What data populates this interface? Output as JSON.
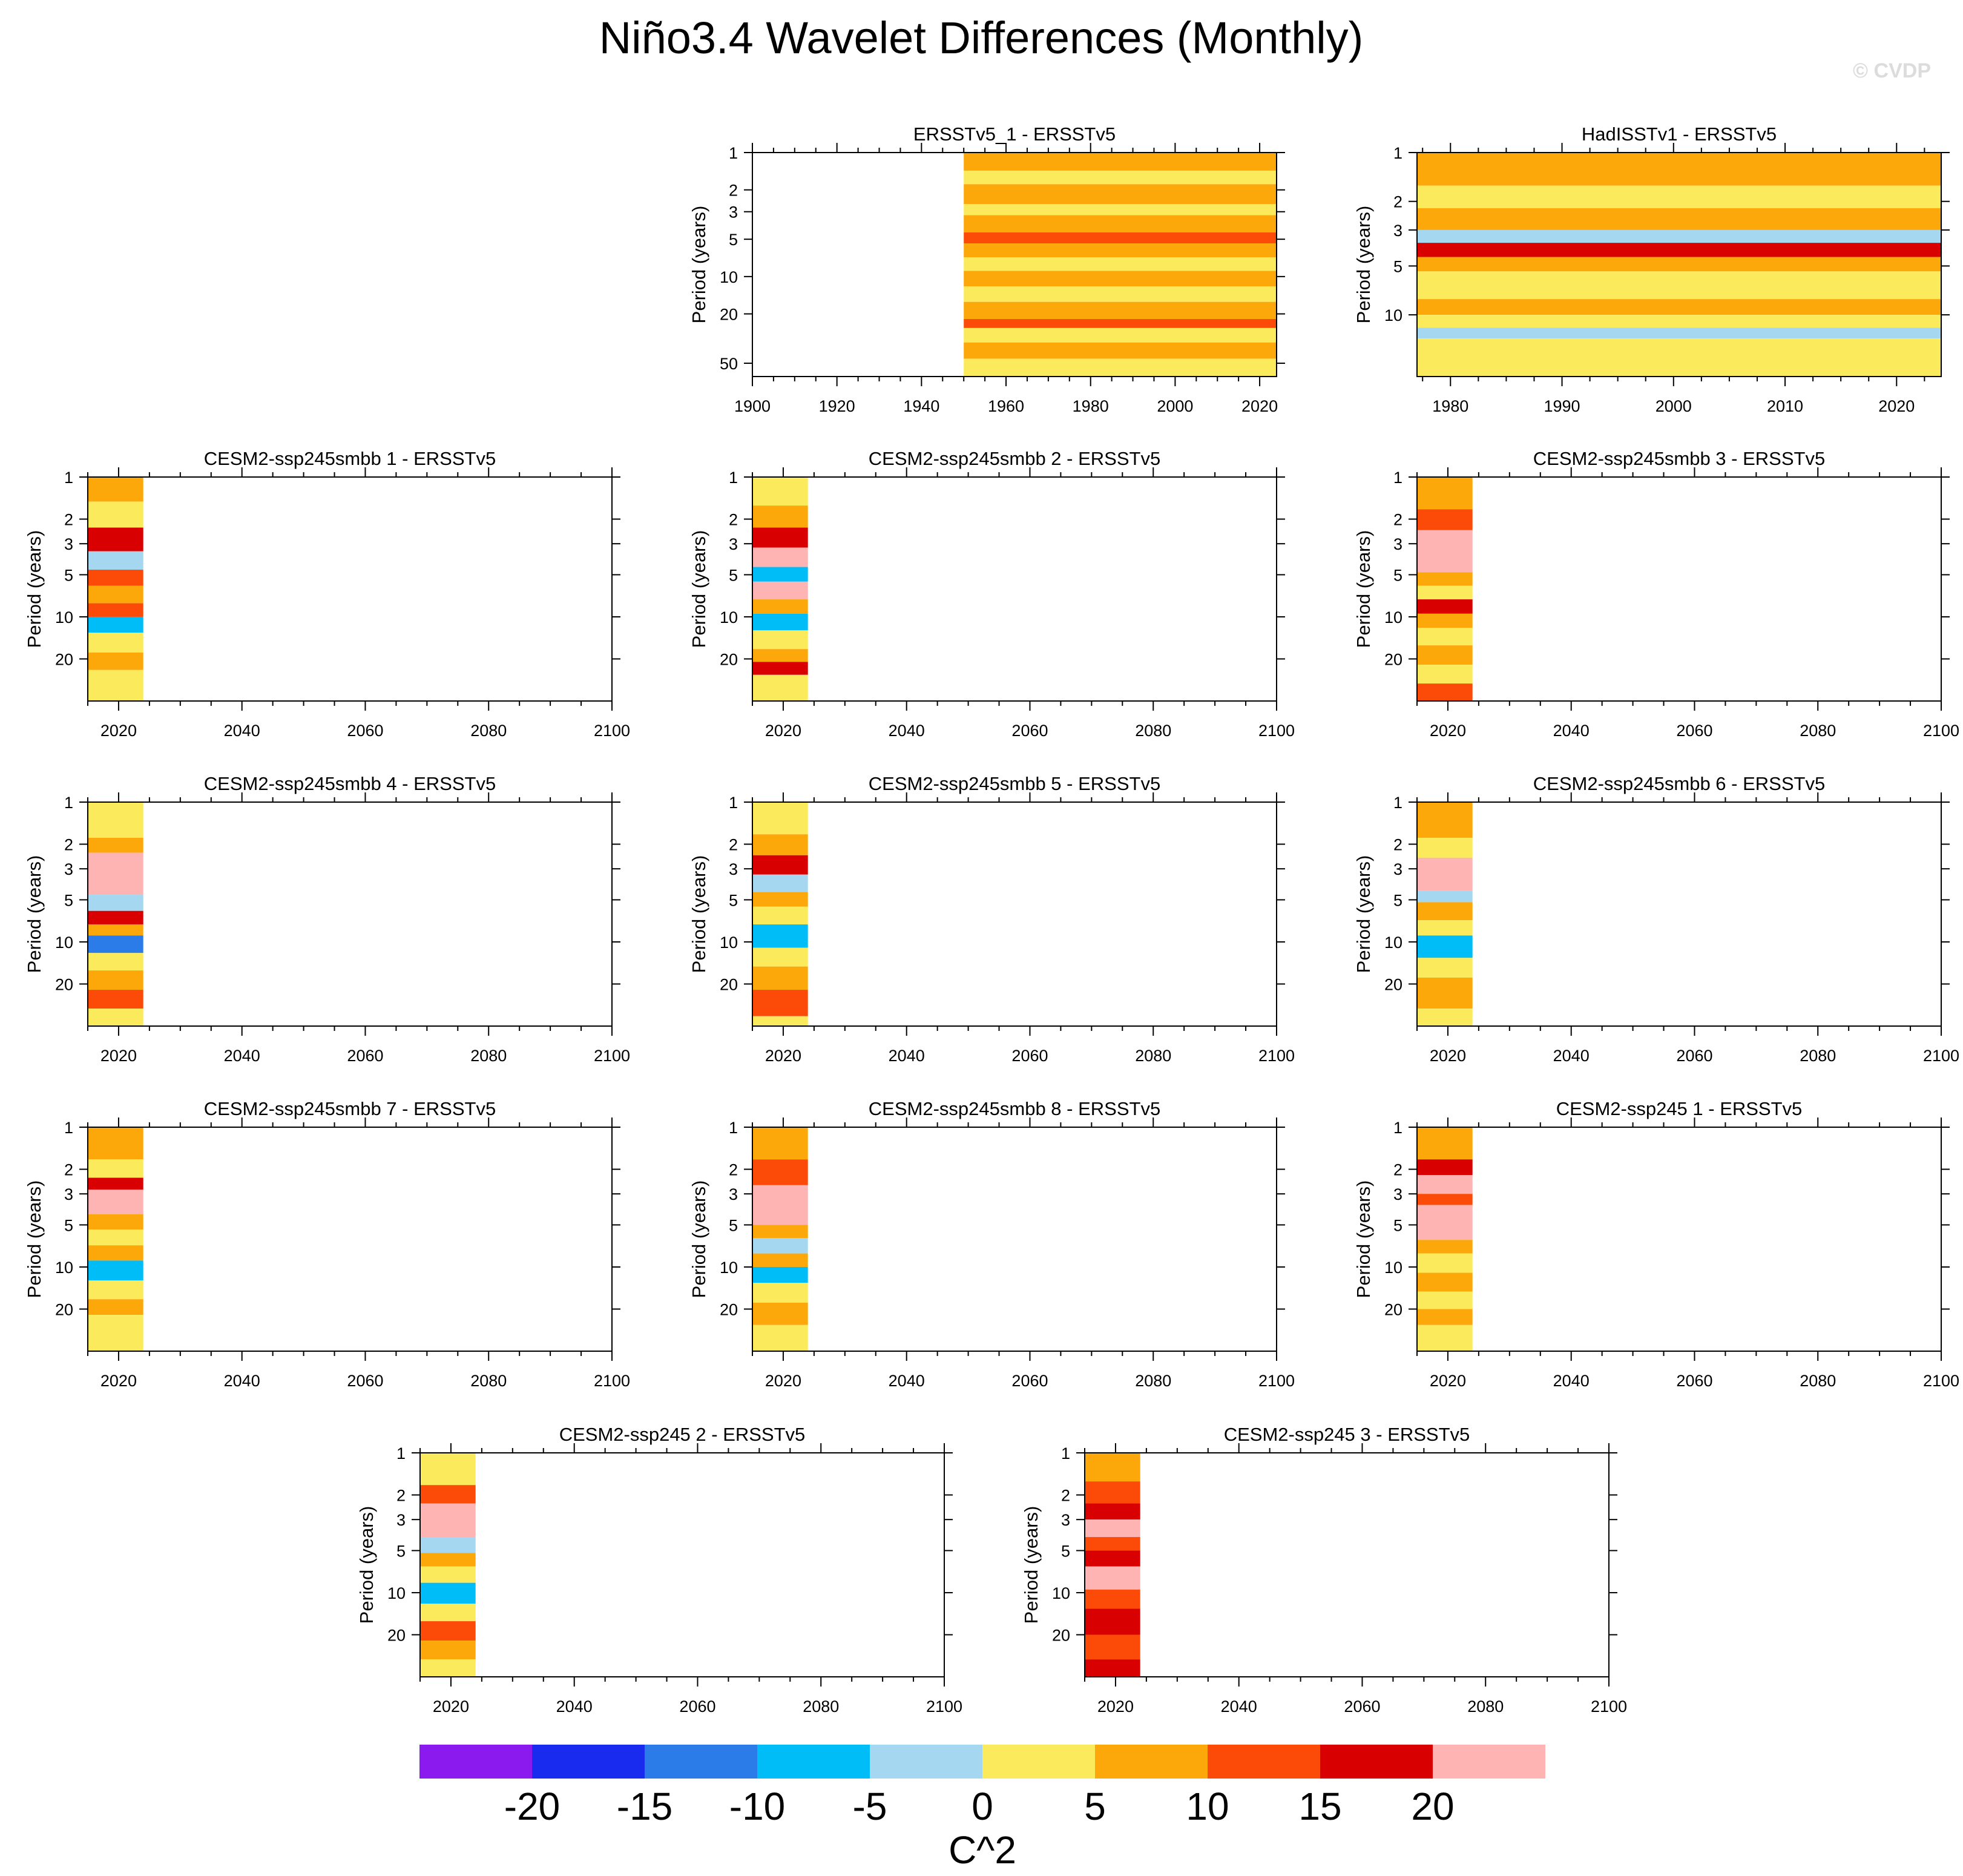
{
  "title": "Niño3.4 Wavelet Differences (Monthly)",
  "watermark": "© CVDP",
  "y_axis_label": "Period (years)",
  "colorbar": {
    "colors": [
      "#8a1aee",
      "#1a2bf0",
      "#2b7be8",
      "#00bdf8",
      "#a6d7f0",
      "#fbeb5c",
      "#fca80a",
      "#fc4a08",
      "#d80000",
      "#ffb4b4"
    ],
    "tick_labels": [
      "-20",
      "-15",
      "-10",
      "-5",
      "0",
      "5",
      "10",
      "15",
      "20"
    ],
    "unit_label": "C^2"
  },
  "chart_data": [
    {
      "type": "heatmap",
      "title": "ERSSTv5_1 - ERSSTv5",
      "xlim": [
        1900,
        2024
      ],
      "x_ticks": [
        "1900",
        "1920",
        "1940",
        "1960",
        "1980",
        "2000",
        "2020"
      ],
      "y_ticks": [
        "1",
        "2",
        "3",
        "5",
        "10",
        "20",
        "50"
      ],
      "ylim": [
        1,
        64
      ],
      "data_x_range": [
        1950,
        2024
      ],
      "bands": [
        [
          1,
          1.4,
          5
        ],
        [
          1.4,
          1.8,
          0
        ],
        [
          1.8,
          2.6,
          5
        ],
        [
          2.6,
          3.2,
          0
        ],
        [
          3.2,
          4.4,
          5
        ],
        [
          4.4,
          5.4,
          10
        ],
        [
          5.4,
          7,
          5
        ],
        [
          7,
          9,
          0
        ],
        [
          9,
          12,
          5
        ],
        [
          12,
          16,
          0
        ],
        [
          16,
          22,
          5
        ],
        [
          22,
          26,
          10
        ],
        [
          26,
          34,
          0
        ],
        [
          34,
          46,
          5
        ],
        [
          46,
          64,
          0
        ]
      ]
    },
    {
      "type": "heatmap",
      "title": "HadISSTv1 - ERSSTv5",
      "xlim": [
        1977,
        2024
      ],
      "x_ticks": [
        "1980",
        "1990",
        "2000",
        "2010",
        "2020"
      ],
      "y_ticks": [
        "1",
        "2",
        "3",
        "5",
        "10"
      ],
      "ylim": [
        1,
        24
      ],
      "data_x_range": [
        1977,
        2024
      ],
      "bands": [
        [
          1,
          1.6,
          5
        ],
        [
          1.6,
          2.2,
          0
        ],
        [
          2.2,
          3,
          5
        ],
        [
          3,
          3.6,
          -5
        ],
        [
          3.6,
          4.4,
          15
        ],
        [
          4.4,
          5.4,
          5
        ],
        [
          5.4,
          8,
          0
        ],
        [
          8,
          10,
          5
        ],
        [
          10,
          12,
          0
        ],
        [
          12,
          14,
          -5
        ],
        [
          14,
          24,
          0
        ]
      ]
    },
    {
      "type": "heatmap",
      "title": "CESM2-ssp245smbb 1 - ERSSTv5",
      "xlim": [
        2015,
        2100
      ],
      "x_ticks": [
        "2020",
        "2040",
        "2060",
        "2080",
        "2100"
      ],
      "y_ticks": [
        "1",
        "2",
        "3",
        "5",
        "10",
        "20"
      ],
      "ylim": [
        1,
        40
      ],
      "data_x_range": [
        2015,
        2024
      ],
      "bands": [
        [
          1,
          1.5,
          5
        ],
        [
          1.5,
          2.3,
          0
        ],
        [
          2.3,
          3.4,
          15
        ],
        [
          3.4,
          4.6,
          -5
        ],
        [
          4.6,
          6,
          10
        ],
        [
          6,
          8,
          5
        ],
        [
          8,
          10,
          10
        ],
        [
          10,
          13,
          -10
        ],
        [
          13,
          18,
          0
        ],
        [
          18,
          24,
          5
        ],
        [
          24,
          40,
          0
        ]
      ]
    },
    {
      "type": "heatmap",
      "title": "CESM2-ssp245smbb 2 - ERSSTv5",
      "xlim": [
        2015,
        2100
      ],
      "x_ticks": [
        "2020",
        "2040",
        "2060",
        "2080",
        "2100"
      ],
      "y_ticks": [
        "1",
        "2",
        "3",
        "5",
        "10",
        "20"
      ],
      "ylim": [
        1,
        40
      ],
      "data_x_range": [
        2015,
        2024
      ],
      "bands": [
        [
          1,
          1.6,
          0
        ],
        [
          1.6,
          2.3,
          5
        ],
        [
          2.3,
          3.2,
          15
        ],
        [
          3.2,
          4.4,
          20
        ],
        [
          4.4,
          5.6,
          -10
        ],
        [
          5.6,
          7.5,
          20
        ],
        [
          7.5,
          9.5,
          5
        ],
        [
          9.5,
          12.5,
          -10
        ],
        [
          12.5,
          17,
          0
        ],
        [
          17,
          21,
          5
        ],
        [
          21,
          26,
          15
        ],
        [
          26,
          40,
          0
        ]
      ]
    },
    {
      "type": "heatmap",
      "title": "CESM2-ssp245smbb 3 - ERSSTv5",
      "xlim": [
        2015,
        2100
      ],
      "x_ticks": [
        "2020",
        "2040",
        "2060",
        "2080",
        "2100"
      ],
      "y_ticks": [
        "1",
        "2",
        "3",
        "5",
        "10",
        "20"
      ],
      "ylim": [
        1,
        40
      ],
      "data_x_range": [
        2015,
        2024
      ],
      "bands": [
        [
          1,
          1.7,
          5
        ],
        [
          1.7,
          2.4,
          10
        ],
        [
          2.4,
          4.8,
          20
        ],
        [
          4.8,
          6,
          5
        ],
        [
          6,
          7.5,
          0
        ],
        [
          7.5,
          9.5,
          15
        ],
        [
          9.5,
          12,
          5
        ],
        [
          12,
          16,
          0
        ],
        [
          16,
          22,
          5
        ],
        [
          22,
          30,
          0
        ],
        [
          30,
          40,
          10
        ]
      ]
    },
    {
      "type": "heatmap",
      "title": "CESM2-ssp245smbb 4 - ERSSTv5",
      "xlim": [
        2015,
        2100
      ],
      "x_ticks": [
        "2020",
        "2040",
        "2060",
        "2080",
        "2100"
      ],
      "y_ticks": [
        "1",
        "2",
        "3",
        "5",
        "10",
        "20"
      ],
      "ylim": [
        1,
        40
      ],
      "data_x_range": [
        2015,
        2024
      ],
      "bands": [
        [
          1,
          1.8,
          0
        ],
        [
          1.8,
          2.3,
          5
        ],
        [
          2.3,
          4.6,
          20
        ],
        [
          4.6,
          6,
          -5
        ],
        [
          6,
          7.5,
          15
        ],
        [
          7.5,
          9,
          5
        ],
        [
          9,
          12,
          -15
        ],
        [
          12,
          16,
          0
        ],
        [
          16,
          22,
          5
        ],
        [
          22,
          30,
          10
        ],
        [
          30,
          40,
          0
        ]
      ]
    },
    {
      "type": "heatmap",
      "title": "CESM2-ssp245smbb 5 - ERSSTv5",
      "xlim": [
        2015,
        2100
      ],
      "x_ticks": [
        "2020",
        "2040",
        "2060",
        "2080",
        "2100"
      ],
      "y_ticks": [
        "1",
        "2",
        "3",
        "5",
        "10",
        "20"
      ],
      "ylim": [
        1,
        40
      ],
      "data_x_range": [
        2015,
        2024
      ],
      "bands": [
        [
          1,
          1.7,
          0
        ],
        [
          1.7,
          2.4,
          5
        ],
        [
          2.4,
          3.3,
          15
        ],
        [
          3.3,
          4.4,
          -5
        ],
        [
          4.4,
          5.6,
          5
        ],
        [
          5.6,
          7.5,
          0
        ],
        [
          7.5,
          11,
          -10
        ],
        [
          11,
          15,
          0
        ],
        [
          15,
          22,
          5
        ],
        [
          22,
          34,
          10
        ],
        [
          34,
          40,
          0
        ]
      ]
    },
    {
      "type": "heatmap",
      "title": "CESM2-ssp245smbb 6 - ERSSTv5",
      "xlim": [
        2015,
        2100
      ],
      "x_ticks": [
        "2020",
        "2040",
        "2060",
        "2080",
        "2100"
      ],
      "y_ticks": [
        "1",
        "2",
        "3",
        "5",
        "10",
        "20"
      ],
      "ylim": [
        1,
        40
      ],
      "data_x_range": [
        2015,
        2024
      ],
      "bands": [
        [
          1,
          1.8,
          5
        ],
        [
          1.8,
          2.5,
          0
        ],
        [
          2.5,
          4.3,
          20
        ],
        [
          4.3,
          5.2,
          -5
        ],
        [
          5.2,
          7,
          5
        ],
        [
          7,
          9,
          0
        ],
        [
          9,
          13,
          -10
        ],
        [
          13,
          18,
          0
        ],
        [
          18,
          30,
          5
        ],
        [
          30,
          40,
          0
        ]
      ]
    },
    {
      "type": "heatmap",
      "title": "CESM2-ssp245smbb 7 - ERSSTv5",
      "xlim": [
        2015,
        2100
      ],
      "x_ticks": [
        "2020",
        "2040",
        "2060",
        "2080",
        "2100"
      ],
      "y_ticks": [
        "1",
        "2",
        "3",
        "5",
        "10",
        "20"
      ],
      "ylim": [
        1,
        40
      ],
      "data_x_range": [
        2015,
        2024
      ],
      "bands": [
        [
          1,
          1.7,
          5
        ],
        [
          1.7,
          2.3,
          0
        ],
        [
          2.3,
          2.8,
          15
        ],
        [
          2.8,
          4.2,
          20
        ],
        [
          4.2,
          5.4,
          5
        ],
        [
          5.4,
          7,
          0
        ],
        [
          7,
          9,
          5
        ],
        [
          9,
          12.5,
          -10
        ],
        [
          12.5,
          17,
          0
        ],
        [
          17,
          22,
          5
        ],
        [
          22,
          40,
          0
        ]
      ]
    },
    {
      "type": "heatmap",
      "title": "CESM2-ssp245smbb 8 - ERSSTv5",
      "xlim": [
        2015,
        2100
      ],
      "x_ticks": [
        "2020",
        "2040",
        "2060",
        "2080",
        "2100"
      ],
      "y_ticks": [
        "1",
        "2",
        "3",
        "5",
        "10",
        "20"
      ],
      "ylim": [
        1,
        40
      ],
      "data_x_range": [
        2015,
        2024
      ],
      "bands": [
        [
          1,
          1.7,
          5
        ],
        [
          1.7,
          2.6,
          10
        ],
        [
          2.6,
          5,
          20
        ],
        [
          5,
          6.2,
          5
        ],
        [
          6.2,
          8,
          -5
        ],
        [
          8,
          10,
          5
        ],
        [
          10,
          13,
          -10
        ],
        [
          13,
          18,
          0
        ],
        [
          18,
          26,
          5
        ],
        [
          26,
          40,
          0
        ]
      ]
    },
    {
      "type": "heatmap",
      "title": "CESM2-ssp245 1 - ERSSTv5",
      "xlim": [
        2015,
        2100
      ],
      "x_ticks": [
        "2020",
        "2040",
        "2060",
        "2080",
        "2100"
      ],
      "y_ticks": [
        "1",
        "2",
        "3",
        "5",
        "10",
        "20"
      ],
      "ylim": [
        1,
        40
      ],
      "data_x_range": [
        2015,
        2024
      ],
      "bands": [
        [
          1,
          1.7,
          5
        ],
        [
          1.7,
          2.2,
          15
        ],
        [
          2.2,
          3,
          20
        ],
        [
          3,
          3.6,
          10
        ],
        [
          3.6,
          6.4,
          20
        ],
        [
          6.4,
          8,
          5
        ],
        [
          8,
          11,
          0
        ],
        [
          11,
          15,
          5
        ],
        [
          15,
          20,
          0
        ],
        [
          20,
          26,
          5
        ],
        [
          26,
          40,
          0
        ]
      ]
    },
    {
      "type": "heatmap",
      "title": "CESM2-ssp245 2 - ERSSTv5",
      "xlim": [
        2015,
        2100
      ],
      "x_ticks": [
        "2020",
        "2040",
        "2060",
        "2080",
        "2100"
      ],
      "y_ticks": [
        "1",
        "2",
        "3",
        "5",
        "10",
        "20"
      ],
      "ylim": [
        1,
        40
      ],
      "data_x_range": [
        2015,
        2024
      ],
      "bands": [
        [
          1,
          1.7,
          0
        ],
        [
          1.7,
          2.3,
          10
        ],
        [
          2.3,
          4,
          20
        ],
        [
          4,
          5.2,
          -5
        ],
        [
          5.2,
          6.5,
          5
        ],
        [
          6.5,
          8.5,
          0
        ],
        [
          8.5,
          12,
          -10
        ],
        [
          12,
          16,
          0
        ],
        [
          16,
          22,
          10
        ],
        [
          22,
          30,
          5
        ],
        [
          30,
          40,
          0
        ]
      ]
    },
    {
      "type": "heatmap",
      "title": "CESM2-ssp245 3 - ERSSTv5",
      "xlim": [
        2015,
        2100
      ],
      "x_ticks": [
        "2020",
        "2040",
        "2060",
        "2080",
        "2100"
      ],
      "y_ticks": [
        "1",
        "2",
        "3",
        "5",
        "10",
        "20"
      ],
      "ylim": [
        1,
        40
      ],
      "data_x_range": [
        2015,
        2024
      ],
      "bands": [
        [
          1,
          1.6,
          5
        ],
        [
          1.6,
          2.3,
          10
        ],
        [
          2.3,
          3,
          15
        ],
        [
          3,
          4,
          20
        ],
        [
          4,
          5,
          10
        ],
        [
          5,
          6.5,
          15
        ],
        [
          6.5,
          9.5,
          20
        ],
        [
          9.5,
          13,
          10
        ],
        [
          13,
          20,
          15
        ],
        [
          20,
          30,
          10
        ],
        [
          30,
          40,
          15
        ]
      ]
    }
  ]
}
